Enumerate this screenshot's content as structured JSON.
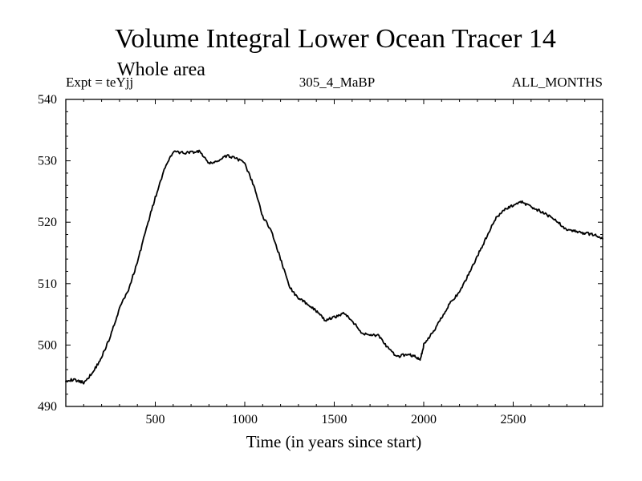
{
  "chart_data": {
    "type": "line",
    "title": "Volume Integral Lower Ocean Tracer 14",
    "subtitle": "Whole area",
    "experiment_label": "Expt = teYjj",
    "period_label": "305_4_MaBP",
    "season_label": "ALL_MONTHS",
    "xlabel": "Time (in years since start)",
    "ylabel": "",
    "xlim": [
      0,
      3000
    ],
    "ylim": [
      490,
      540
    ],
    "x_ticks": [
      500,
      1000,
      1500,
      2000,
      2500
    ],
    "x_tick_labels": [
      "500",
      "1000",
      "1500",
      "2000",
      "2500"
    ],
    "y_ticks": [
      490,
      500,
      510,
      520,
      530,
      540
    ],
    "y_tick_labels": [
      "490",
      "500",
      "510",
      "520",
      "530",
      "540"
    ],
    "grid": false,
    "series": [
      {
        "name": "Lower Ocean Tracer 14",
        "x": [
          0,
          50,
          100,
          150,
          200,
          250,
          300,
          350,
          400,
          450,
          500,
          550,
          600,
          650,
          700,
          750,
          800,
          850,
          900,
          950,
          1000,
          1050,
          1100,
          1150,
          1200,
          1250,
          1300,
          1350,
          1400,
          1450,
          1500,
          1550,
          1600,
          1650,
          1700,
          1750,
          1800,
          1850,
          1900,
          1950,
          1980,
          2000,
          2050,
          2100,
          2150,
          2200,
          2250,
          2300,
          2350,
          2400,
          2450,
          2500,
          2550,
          2600,
          2650,
          2700,
          2750,
          2800,
          2850,
          2900,
          2950,
          3000
        ],
        "values": [
          494.3,
          494.3,
          493.9,
          495.5,
          498.0,
          501.5,
          506.0,
          509.0,
          513.5,
          519.0,
          524.0,
          528.5,
          531.5,
          531.3,
          531.4,
          531.5,
          529.5,
          530.0,
          530.8,
          530.5,
          529.5,
          526.0,
          521.0,
          518.5,
          514.0,
          509.5,
          507.5,
          506.8,
          505.5,
          504.0,
          504.5,
          505.2,
          504.0,
          502.0,
          501.7,
          501.5,
          499.5,
          498.0,
          498.5,
          498.2,
          497.5,
          500.0,
          502.0,
          504.5,
          507.0,
          508.5,
          511.5,
          514.5,
          517.5,
          520.5,
          522.0,
          522.8,
          523.3,
          522.5,
          521.8,
          521.0,
          520.0,
          518.8,
          518.5,
          518.2,
          518.0,
          517.3
        ]
      }
    ]
  }
}
